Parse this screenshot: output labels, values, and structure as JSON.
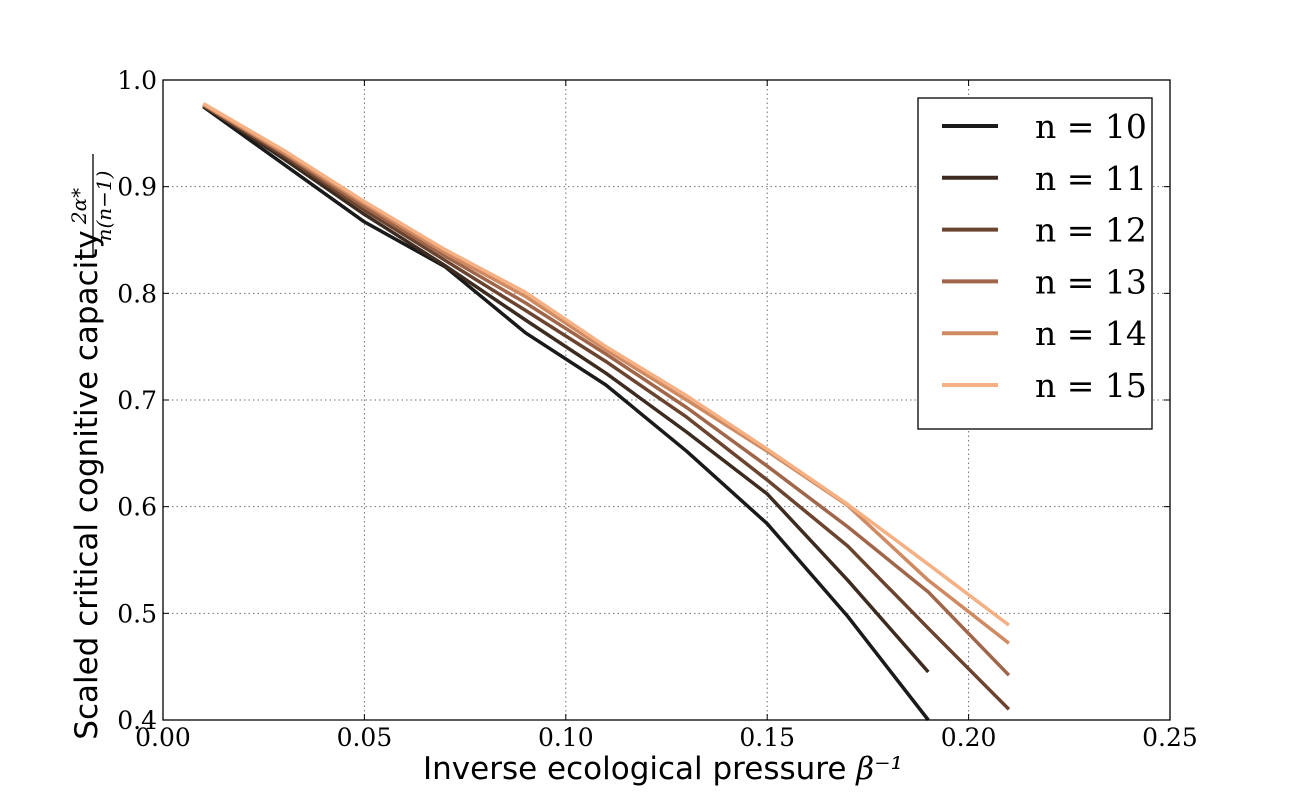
{
  "chart_data": {
    "type": "line",
    "xlabel": "Inverse ecological pressure",
    "xlabel_math": "β⁻¹",
    "ylabel": "Scaled critical cognitive capacity",
    "ylabel_math_numerator": "2α*",
    "ylabel_math_denominator": "n(n−1)",
    "xlim": [
      0.0,
      0.25
    ],
    "ylim": [
      0.4,
      1.0
    ],
    "x_ticks": [
      {
        "value": 0.0,
        "label": "0.00"
      },
      {
        "value": 0.05,
        "label": "0.05"
      },
      {
        "value": 0.1,
        "label": "0.10"
      },
      {
        "value": 0.15,
        "label": "0.15"
      },
      {
        "value": 0.2,
        "label": "0.20"
      },
      {
        "value": 0.25,
        "label": "0.25"
      }
    ],
    "y_ticks": [
      {
        "value": 0.4,
        "label": "0.4"
      },
      {
        "value": 0.5,
        "label": "0.5"
      },
      {
        "value": 0.6,
        "label": "0.6"
      },
      {
        "value": 0.7,
        "label": "0.7"
      },
      {
        "value": 0.8,
        "label": "0.8"
      },
      {
        "value": 0.9,
        "label": "0.9"
      },
      {
        "value": 1.0,
        "label": "1.0"
      }
    ],
    "grid": true,
    "legend_position": "top-right",
    "series": [
      {
        "name": "n = 10",
        "color": "#1a1a1a",
        "x": [
          0.01,
          0.03,
          0.05,
          0.07,
          0.09,
          0.11,
          0.13,
          0.15,
          0.17,
          0.19
        ],
        "y": [
          0.975,
          0.921,
          0.867,
          0.825,
          0.763,
          0.714,
          0.652,
          0.584,
          0.497,
          0.4
        ]
      },
      {
        "name": "n = 11",
        "color": "#3d2b20",
        "x": [
          0.01,
          0.03,
          0.05,
          0.07,
          0.09,
          0.11,
          0.13,
          0.15,
          0.17,
          0.19
        ],
        "y": [
          0.976,
          0.926,
          0.874,
          0.826,
          0.775,
          0.725,
          0.67,
          0.612,
          0.531,
          0.445
        ]
      },
      {
        "name": "n = 12",
        "color": "#6b4430",
        "x": [
          0.01,
          0.03,
          0.05,
          0.07,
          0.09,
          0.11,
          0.13,
          0.15,
          0.17,
          0.19,
          0.21
        ],
        "y": [
          0.976,
          0.929,
          0.878,
          0.831,
          0.784,
          0.736,
          0.684,
          0.625,
          0.563,
          0.486,
          0.41
        ]
      },
      {
        "name": "n = 13",
        "color": "#a0664a",
        "x": [
          0.01,
          0.03,
          0.05,
          0.07,
          0.09,
          0.11,
          0.13,
          0.15,
          0.17,
          0.19,
          0.21
        ],
        "y": [
          0.977,
          0.931,
          0.881,
          0.835,
          0.791,
          0.743,
          0.693,
          0.638,
          0.581,
          0.52,
          0.442
        ]
      },
      {
        "name": "n = 14",
        "color": "#cf8a62",
        "x": [
          0.01,
          0.03,
          0.05,
          0.07,
          0.09,
          0.11,
          0.13,
          0.15,
          0.17,
          0.19,
          0.21
        ],
        "y": [
          0.977,
          0.932,
          0.884,
          0.838,
          0.797,
          0.747,
          0.7,
          0.652,
          0.601,
          0.531,
          0.472
        ]
      },
      {
        "name": "n = 15",
        "color": "#f5b083",
        "x": [
          0.01,
          0.03,
          0.05,
          0.07,
          0.09,
          0.11,
          0.13,
          0.15,
          0.17,
          0.19,
          0.21
        ],
        "y": [
          0.978,
          0.934,
          0.886,
          0.841,
          0.801,
          0.75,
          0.704,
          0.654,
          0.602,
          0.546,
          0.489
        ]
      }
    ]
  }
}
